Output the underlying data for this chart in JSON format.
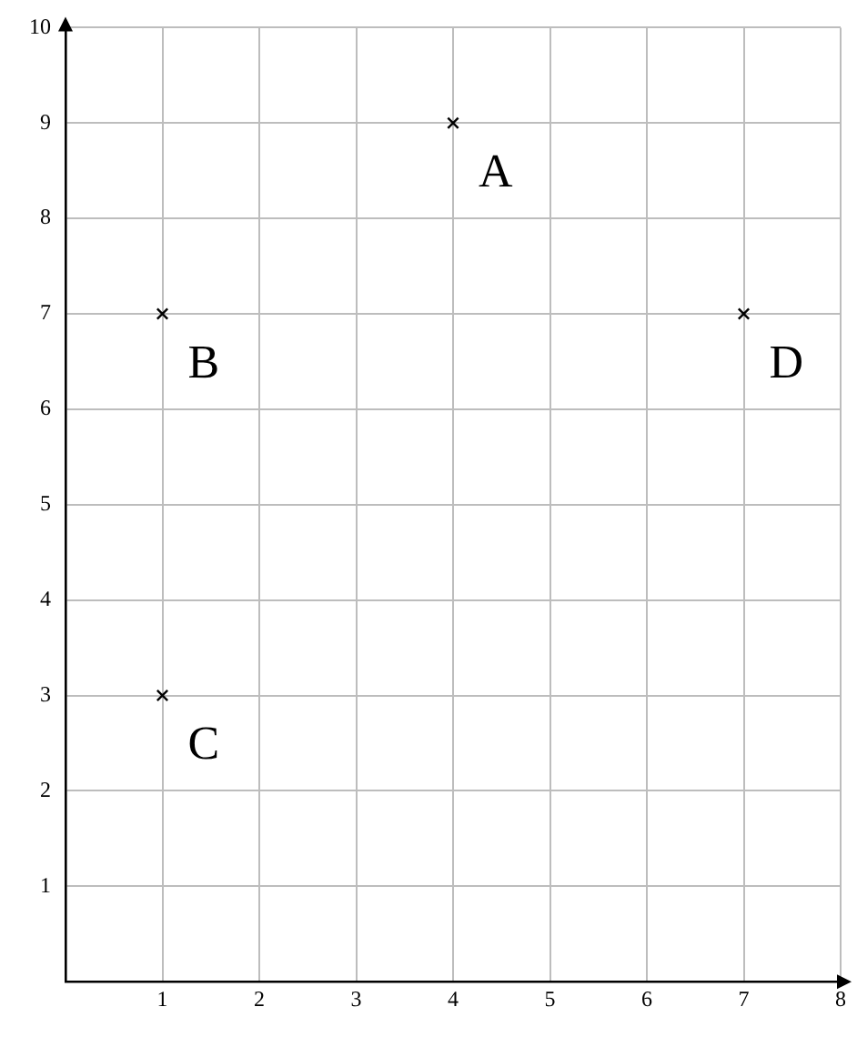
{
  "chart_data": {
    "type": "scatter",
    "x": [
      4,
      1,
      1,
      7
    ],
    "values": [
      9,
      7,
      3,
      7
    ],
    "color": "#000000",
    "marker": "cross",
    "xlim": [
      0,
      8
    ],
    "ylim": [
      0,
      10
    ],
    "xticks": [
      1,
      2,
      3,
      4,
      5,
      6,
      7,
      8
    ],
    "yticks": [
      1,
      2,
      3,
      4,
      5,
      6,
      7,
      8,
      9,
      10
    ],
    "grid": true,
    "annotations": [
      {
        "text": "A",
        "x": 4,
        "y": 9
      },
      {
        "text": "B",
        "x": 1,
        "y": 7
      },
      {
        "text": "C",
        "x": 1,
        "y": 3
      },
      {
        "text": "D",
        "x": 7,
        "y": 7
      }
    ]
  }
}
